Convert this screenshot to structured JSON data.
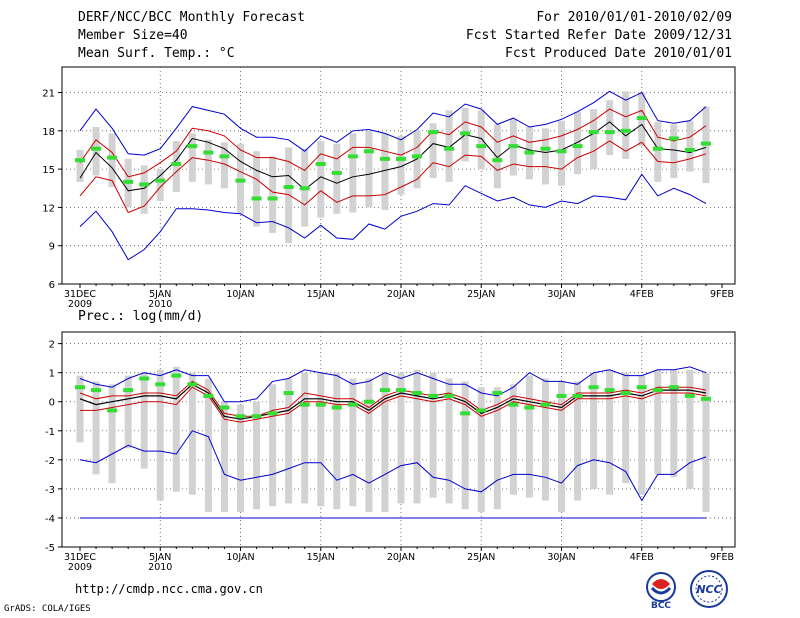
{
  "header": {
    "title": "DERF/NCC/BCC Monthly Forecast",
    "member_size": "Member Size=40",
    "variable": "Mean Surf. Temp.: °C",
    "period": "For 2010/01/01-2010/02/09",
    "started": "Fcst Started Refer Date 2009/12/31",
    "produced": "Fcst Produced Date 2010/01/01"
  },
  "footer": {
    "url": "http://cmdp.ncc.cma.gov.cn",
    "grads": "GrADS: COLA/IGES",
    "logo1_text": "BCC",
    "logo2_text": "NCC"
  },
  "colors": {
    "box": "#d2d2d2",
    "median": "#33dd33",
    "mean": "#000000",
    "band": "#cc0000",
    "envelope": "#0000cc",
    "grid": "#555555"
  },
  "chart_data": [
    {
      "type": "box-plume",
      "title": "Mean Surf. Temp.: °C",
      "x_ticks": [
        "31DEC\n2009",
        "5JAN\n2010",
        "10JAN",
        "15JAN",
        "20JAN",
        "25JAN",
        "30JAN",
        "4FEB",
        "9FEB"
      ],
      "x_range": [
        0,
        40
      ],
      "ylim": [
        6,
        23
      ],
      "y_ticks": [
        6,
        9,
        12,
        15,
        18,
        21
      ],
      "grid": true,
      "max": [
        18.0,
        19.7,
        18.2,
        16.2,
        16.1,
        16.6,
        18.2,
        19.9,
        19.6,
        19.3,
        18.2,
        17.5,
        17.5,
        17.3,
        16.4,
        17.6,
        17.1,
        18.0,
        18.1,
        17.8,
        17.3,
        18.1,
        19.4,
        19.1,
        20.1,
        19.7,
        18.5,
        19.0,
        18.3,
        18.5,
        18.9,
        19.5,
        20.2,
        21.1,
        20.4,
        21.0,
        18.8,
        18.6,
        18.8,
        19.9
      ],
      "p_upper": [
        15.5,
        17.3,
        16.3,
        14.4,
        14.7,
        15.5,
        16.4,
        18.2,
        18.0,
        17.6,
        16.5,
        15.9,
        15.9,
        15.6,
        14.9,
        16.2,
        15.8,
        16.7,
        16.7,
        16.4,
        16.1,
        16.7,
        18.0,
        17.7,
        18.7,
        18.3,
        17.1,
        17.6,
        17.1,
        17.3,
        17.6,
        18.1,
        18.8,
        19.7,
        19.1,
        19.6,
        17.5,
        17.2,
        17.5,
        18.4
      ],
      "mean": [
        14.3,
        16.3,
        15.1,
        13.3,
        13.5,
        14.5,
        15.7,
        17.4,
        17.1,
        16.6,
        15.6,
        14.9,
        14.4,
        14.5,
        13.4,
        14.4,
        13.9,
        14.4,
        14.6,
        14.9,
        15.2,
        15.8,
        17.0,
        16.7,
        17.7,
        17.4,
        15.9,
        16.9,
        16.5,
        16.3,
        16.5,
        17.1,
        17.8,
        18.7,
        17.6,
        18.5,
        16.6,
        16.5,
        16.3,
        16.7
      ],
      "p_lower": [
        12.9,
        14.4,
        14.1,
        11.6,
        12.1,
        13.6,
        14.8,
        15.9,
        15.7,
        15.4,
        14.8,
        14.2,
        13.2,
        13.0,
        12.2,
        13.3,
        12.4,
        12.9,
        12.9,
        13.0,
        13.6,
        14.2,
        15.5,
        15.2,
        16.1,
        16.0,
        14.9,
        15.4,
        15.2,
        15.2,
        15.0,
        15.9,
        16.4,
        17.2,
        16.4,
        17.1,
        15.6,
        15.5,
        15.8,
        16.2
      ],
      "min": [
        10.5,
        11.7,
        10.1,
        7.9,
        8.7,
        10.1,
        11.9,
        11.9,
        11.8,
        11.6,
        11.5,
        10.8,
        10.9,
        10.4,
        9.6,
        10.6,
        9.6,
        9.5,
        10.7,
        10.3,
        11.3,
        11.7,
        12.3,
        12.2,
        13.7,
        13.1,
        12.5,
        12.8,
        12.2,
        12.0,
        12.5,
        12.3,
        12.9,
        12.8,
        12.6,
        14.6,
        12.9,
        13.5,
        13.0,
        12.3
      ],
      "box_low": [
        14.0,
        14.5,
        13.6,
        12.0,
        11.5,
        12.5,
        13.2,
        14.0,
        13.8,
        13.5,
        11.5,
        10.5,
        10.0,
        9.2,
        10.5,
        11.2,
        11.5,
        11.6,
        12.0,
        11.8,
        13.0,
        13.5,
        14.3,
        14.0,
        15.6,
        15.0,
        13.5,
        14.5,
        14.2,
        13.8,
        13.7,
        14.6,
        15.0,
        16.1,
        15.8,
        16.8,
        14.0,
        14.3,
        14.8,
        13.9
      ],
      "box_high": [
        16.5,
        18.3,
        17.8,
        15.8,
        15.3,
        15.0,
        17.2,
        17.8,
        17.3,
        17.1,
        17.0,
        16.4,
        16.0,
        16.7,
        16.6,
        17.2,
        17.0,
        17.8,
        18.0,
        17.8,
        17.6,
        18.0,
        18.6,
        19.6,
        19.8,
        19.6,
        18.5,
        18.9,
        18.3,
        18.2,
        18.8,
        19.5,
        19.7,
        20.4,
        21.1,
        21.0,
        18.7,
        18.5,
        18.8,
        19.9
      ],
      "median": [
        15.7,
        16.6,
        15.9,
        14.0,
        13.8,
        14.1,
        15.4,
        16.8,
        16.3,
        16.0,
        14.1,
        12.7,
        12.7,
        13.6,
        13.5,
        15.4,
        14.7,
        16.0,
        16.4,
        15.8,
        15.8,
        16.0,
        17.9,
        16.6,
        17.8,
        16.8,
        15.7,
        16.8,
        16.3,
        16.6,
        16.4,
        16.8,
        17.9,
        17.9,
        18.0,
        19.0,
        16.6,
        17.4,
        16.5,
        17.0
      ]
    },
    {
      "type": "box-plume",
      "title": "Prec.: log(mm/d)",
      "x_ticks": [
        "31DEC\n2009",
        "5JAN\n2010",
        "10JAN",
        "15JAN",
        "20JAN",
        "25JAN",
        "30JAN",
        "4FEB",
        "9FEB"
      ],
      "x_range": [
        0,
        40
      ],
      "ylim": [
        -5,
        2.4
      ],
      "y_ticks": [
        -5,
        -4,
        -3,
        -2,
        -1,
        0,
        1,
        2
      ],
      "grid": true,
      "max": [
        0.8,
        0.6,
        0.5,
        0.8,
        1.0,
        0.9,
        1.1,
        0.9,
        0.9,
        0.0,
        0.0,
        0.1,
        0.7,
        0.8,
        1.1,
        1.0,
        0.9,
        0.6,
        0.7,
        1.0,
        0.8,
        1.0,
        0.8,
        0.6,
        0.6,
        0.3,
        0.2,
        0.5,
        1.0,
        0.7,
        0.7,
        0.6,
        1.0,
        1.1,
        0.9,
        0.9,
        1.1,
        1.1,
        1.2,
        1.0
      ],
      "p_upper": [
        0.3,
        0.1,
        0.2,
        0.2,
        0.3,
        0.3,
        0.2,
        0.7,
        0.4,
        -0.4,
        -0.5,
        -0.5,
        -0.3,
        -0.2,
        0.3,
        0.2,
        0.1,
        0.1,
        -0.2,
        0.2,
        0.4,
        0.3,
        0.2,
        0.3,
        0.1,
        -0.3,
        -0.1,
        0.2,
        0.1,
        0.0,
        -0.1,
        0.3,
        0.3,
        0.3,
        0.4,
        0.3,
        0.5,
        0.5,
        0.5,
        0.4
      ],
      "mean": [
        0.1,
        -0.1,
        0.0,
        0.1,
        0.2,
        0.2,
        0.1,
        0.6,
        0.3,
        -0.5,
        -0.6,
        -0.5,
        -0.4,
        -0.3,
        0.1,
        0.1,
        0.0,
        0.0,
        -0.3,
        0.1,
        0.3,
        0.2,
        0.1,
        0.2,
        0.0,
        -0.4,
        -0.2,
        0.1,
        0.0,
        -0.1,
        -0.2,
        0.2,
        0.2,
        0.2,
        0.3,
        0.2,
        0.4,
        0.4,
        0.4,
        0.3
      ],
      "p_lower": [
        -0.3,
        -0.3,
        -0.2,
        -0.1,
        0.0,
        0.0,
        -0.1,
        0.5,
        0.2,
        -0.6,
        -0.7,
        -0.6,
        -0.5,
        -0.4,
        0.0,
        0.0,
        -0.1,
        -0.1,
        -0.4,
        0.0,
        0.2,
        0.1,
        0.0,
        0.1,
        -0.1,
        -0.5,
        -0.3,
        0.0,
        -0.1,
        -0.2,
        -0.3,
        0.1,
        0.1,
        0.1,
        0.2,
        0.1,
        0.3,
        0.3,
        0.3,
        0.2
      ],
      "min": [
        -2.0,
        -2.1,
        -1.8,
        -1.5,
        -1.7,
        -1.7,
        -1.8,
        -1.0,
        -1.2,
        -2.5,
        -2.7,
        -2.6,
        -2.5,
        -2.3,
        -2.1,
        -2.1,
        -2.7,
        -2.5,
        -2.8,
        -2.5,
        -2.2,
        -2.1,
        -2.6,
        -2.7,
        -3.0,
        -3.1,
        -2.7,
        -2.5,
        -2.5,
        -2.6,
        -2.8,
        -2.2,
        -2.0,
        -2.1,
        -2.4,
        -3.4,
        -2.5,
        -2.5,
        -2.1,
        -1.9
      ],
      "box_low": [
        -1.4,
        -2.5,
        -2.8,
        -1.6,
        -2.3,
        -3.4,
        -3.1,
        -3.2,
        -3.8,
        -3.8,
        -3.8,
        -3.7,
        -3.6,
        -3.5,
        -3.5,
        -3.6,
        -3.7,
        -3.6,
        -3.8,
        -3.8,
        -3.5,
        -3.5,
        -3.3,
        -3.5,
        -3.7,
        -3.8,
        -3.7,
        -3.2,
        -3.3,
        -3.4,
        -3.8,
        -3.4,
        -3.0,
        -3.2,
        -2.8,
        -3.2,
        -2.5,
        -2.6,
        -3.0,
        -3.8
      ],
      "box_high": [
        0.9,
        0.7,
        0.6,
        0.9,
        1.0,
        1.1,
        1.2,
        1.0,
        0.8,
        0.0,
        -0.1,
        0.0,
        0.6,
        0.8,
        1.0,
        1.0,
        1.0,
        0.8,
        0.8,
        1.0,
        1.0,
        1.1,
        1.0,
        0.8,
        0.7,
        0.5,
        0.5,
        0.6,
        0.9,
        0.8,
        0.7,
        0.7,
        1.0,
        1.1,
        1.0,
        0.9,
        1.1,
        1.1,
        1.1,
        1.0
      ],
      "median": [
        0.5,
        0.4,
        -0.3,
        0.4,
        0.8,
        0.6,
        0.9,
        0.6,
        0.2,
        -0.2,
        -0.5,
        -0.5,
        -0.4,
        0.3,
        -0.1,
        -0.1,
        -0.2,
        -0.1,
        0.0,
        0.4,
        0.4,
        0.3,
        0.2,
        0.2,
        -0.4,
        -0.3,
        0.3,
        -0.1,
        -0.2,
        -0.1,
        0.2,
        0.2,
        0.5,
        0.4,
        0.3,
        0.5,
        0.4,
        0.5,
        0.2,
        0.1
      ],
      "floor": -4.0
    }
  ]
}
